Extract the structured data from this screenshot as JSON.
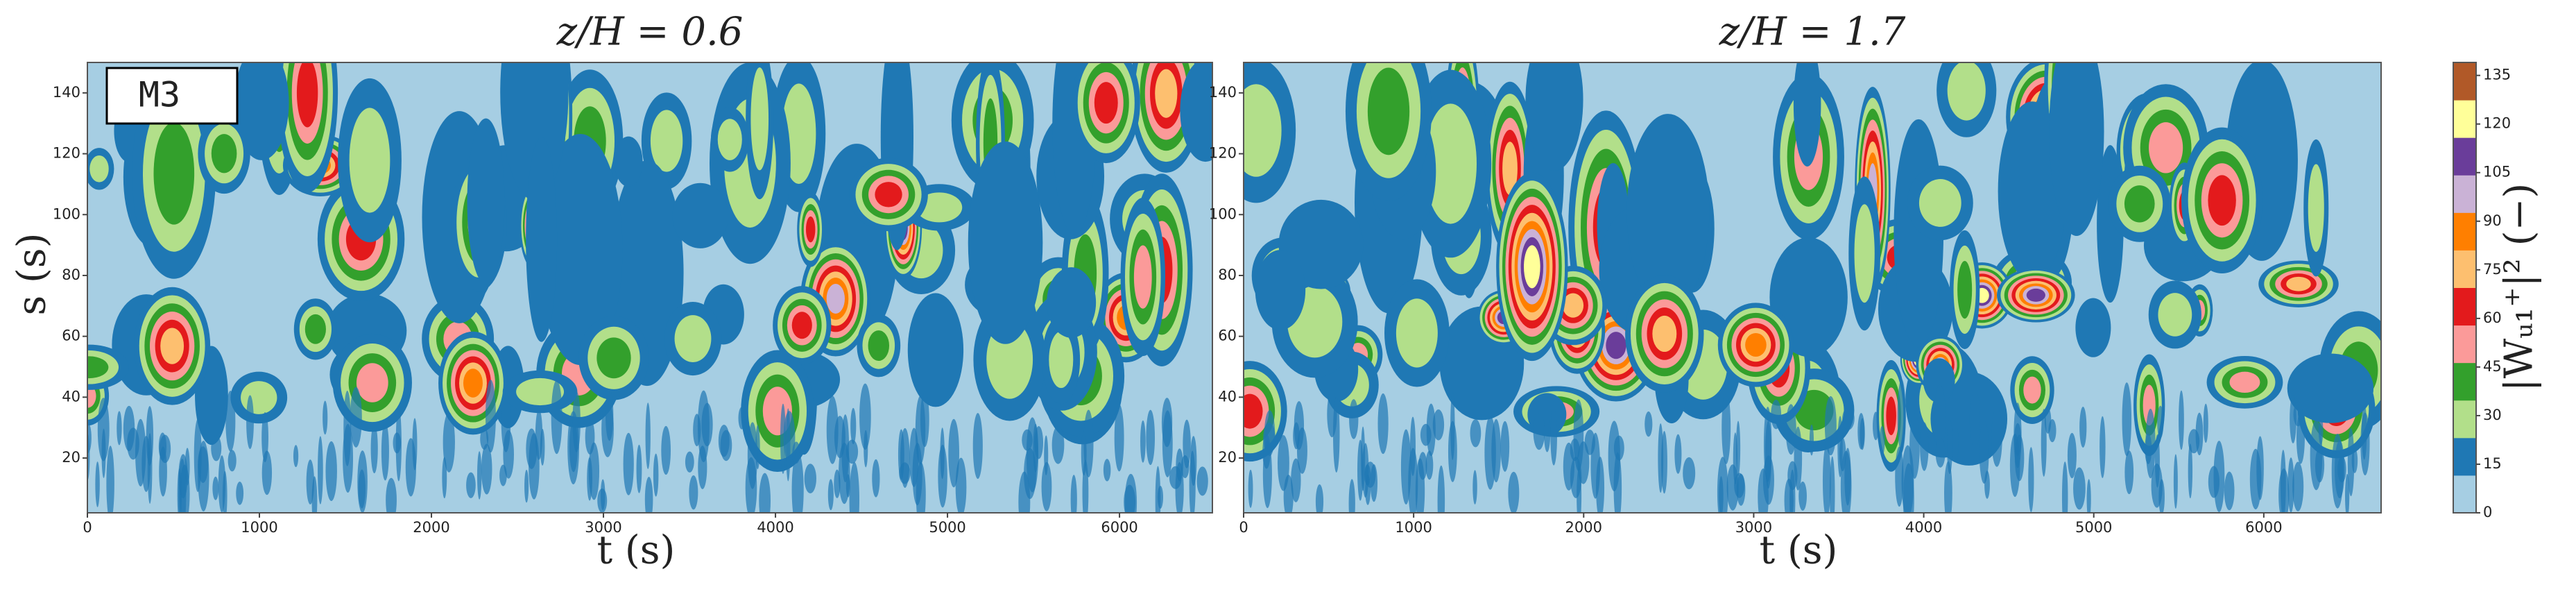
{
  "chart_data": [
    {
      "type": "heatmap",
      "title": "z/H = 0.6",
      "xlabel": "t  (s)",
      "ylabel": "s  (s)",
      "annotation": "M3",
      "xlim": [
        0,
        6540
      ],
      "xticks": [
        0,
        1000,
        2000,
        3000,
        4000,
        5000,
        6000
      ],
      "ylim": [
        2,
        150
      ],
      "yticks": [
        20,
        40,
        60,
        80,
        100,
        120,
        140
      ]
    },
    {
      "type": "heatmap",
      "title": "z/H = 1.7",
      "xlabel": "t  (s)",
      "xlim": [
        0,
        6690
      ],
      "xticks": [
        0,
        1000,
        2000,
        3000,
        4000,
        5000,
        6000
      ],
      "ylim": [
        2,
        150
      ],
      "yticks": [
        20,
        40,
        60,
        80,
        100,
        120,
        140
      ]
    }
  ],
  "colorbar": {
    "label": "|Wᵤ₁⁺|²  (−)",
    "lim": [
      0,
      139
    ],
    "ticks": [
      0,
      15,
      30,
      45,
      60,
      75,
      90,
      105,
      120,
      135
    ],
    "colors": [
      "#a6cee3",
      "#1f78b4",
      "#b2df8a",
      "#33a02c",
      "#fb9a99",
      "#e31a1c",
      "#fdbf6f",
      "#ff7f00",
      "#cab2d6",
      "#6a3d9a",
      "#ffff99",
      "#b15928"
    ]
  }
}
